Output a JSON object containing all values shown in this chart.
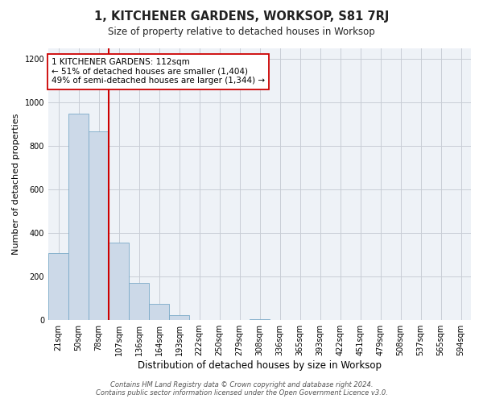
{
  "title": "1, KITCHENER GARDENS, WORKSOP, S81 7RJ",
  "subtitle": "Size of property relative to detached houses in Worksop",
  "xlabel": "Distribution of detached houses by size in Worksop",
  "ylabel": "Number of detached properties",
  "bin_labels": [
    "21sqm",
    "50sqm",
    "78sqm",
    "107sqm",
    "136sqm",
    "164sqm",
    "193sqm",
    "222sqm",
    "250sqm",
    "279sqm",
    "308sqm",
    "336sqm",
    "365sqm",
    "393sqm",
    "422sqm",
    "451sqm",
    "479sqm",
    "508sqm",
    "537sqm",
    "565sqm",
    "594sqm"
  ],
  "bar_heights": [
    307,
    951,
    868,
    355,
    170,
    75,
    22,
    0,
    0,
    0,
    5,
    0,
    0,
    0,
    0,
    0,
    0,
    0,
    0,
    0,
    0
  ],
  "bar_color": "#ccd9e8",
  "bar_edge_color": "#7aaac8",
  "vline_x": 3,
  "vline_color": "#cc0000",
  "annotation_text": "1 KITCHENER GARDENS: 112sqm\n← 51% of detached houses are smaller (1,404)\n49% of semi-detached houses are larger (1,344) →",
  "annotation_box_color": "#ffffff",
  "annotation_box_edge": "#cc0000",
  "ylim": [
    0,
    1250
  ],
  "yticks": [
    0,
    200,
    400,
    600,
    800,
    1000,
    1200
  ],
  "footer_text": "Contains HM Land Registry data © Crown copyright and database right 2024.\nContains public sector information licensed under the Open Government Licence v3.0.",
  "bg_color": "#ffffff",
  "plot_bg_color": "#eef2f7",
  "grid_color": "#c8cdd5"
}
